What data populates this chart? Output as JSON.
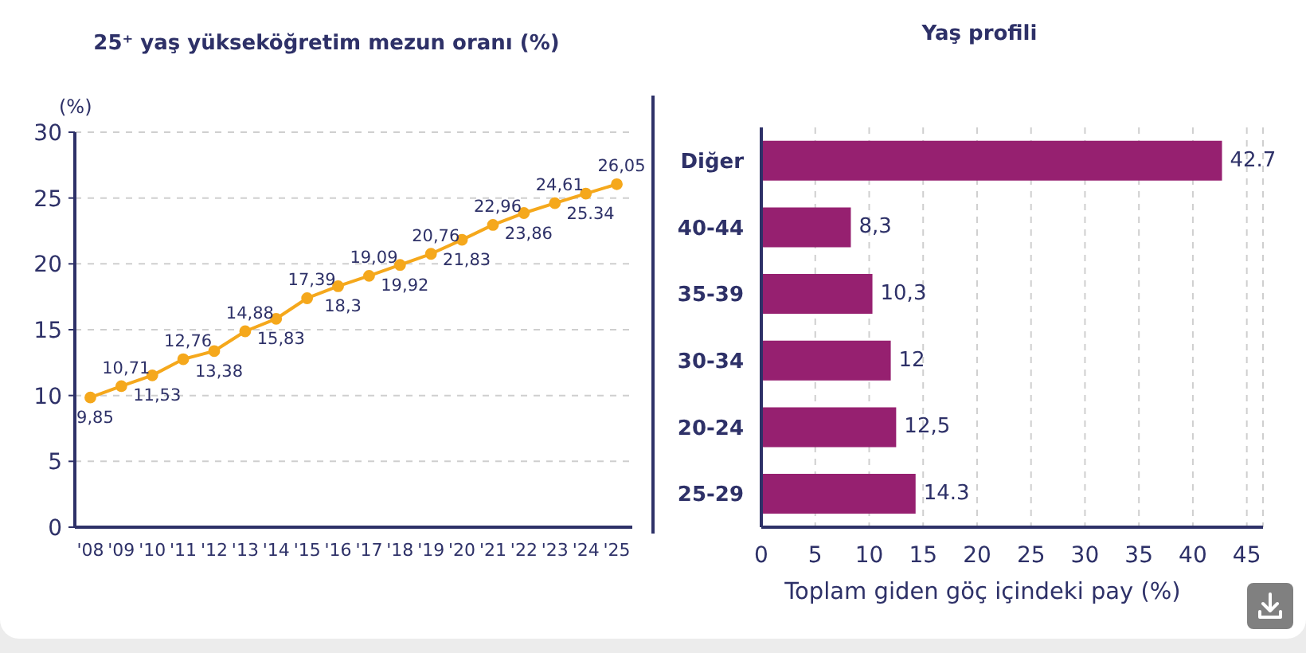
{
  "chart_data": [
    {
      "type": "line",
      "title": "25⁺ yaş yükseköğretim mezun oranı (%)",
      "ylabel": "(%)",
      "categories": [
        "'08",
        "'09",
        "'10",
        "'11",
        "'12",
        "'13",
        "'14",
        "'15",
        "'16",
        "'17",
        "'18",
        "'19",
        "'20",
        "'21",
        "'22",
        "'23",
        "'24",
        "'25"
      ],
      "values": [
        9.85,
        10.71,
        11.53,
        12.76,
        13.38,
        14.88,
        15.83,
        17.39,
        18.3,
        19.09,
        19.92,
        20.76,
        21.83,
        22.96,
        23.86,
        24.61,
        25.34,
        26.05
      ],
      "value_labels": [
        "9,85",
        "10,71",
        "11,53",
        "12,76",
        "13,38",
        "14,88",
        "15,83",
        "17,39",
        "18,3",
        "19,09",
        "19,92",
        "20,76",
        "21,83",
        "22,96",
        "23,86",
        "24,61",
        "25.34",
        "26,05"
      ],
      "color": "#f5a81c",
      "ylim": [
        0,
        30
      ],
      "yticks": [
        0,
        5,
        10,
        15,
        20,
        25,
        30
      ],
      "grid": "y",
      "marker": "circle",
      "line_style": "solid"
    },
    {
      "type": "bar",
      "orientation": "horizontal",
      "title": "Yaş profili",
      "xlabel": "Toplam giden göç içindeki pay (%)",
      "categories": [
        "Diğer",
        "40-44",
        "35-39",
        "30-34",
        "20-24",
        "25-29"
      ],
      "values": [
        42.7,
        8.3,
        10.3,
        12,
        12.5,
        14.3
      ],
      "value_labels": [
        "42.7",
        "8,3",
        "10,3",
        "12",
        "12,5",
        "14.3"
      ],
      "color": "#962070",
      "xlim": [
        0,
        46.5
      ],
      "xticks": [
        0,
        5,
        10,
        15,
        20,
        25,
        30,
        35,
        40,
        45
      ],
      "grid": "x"
    }
  ]
}
